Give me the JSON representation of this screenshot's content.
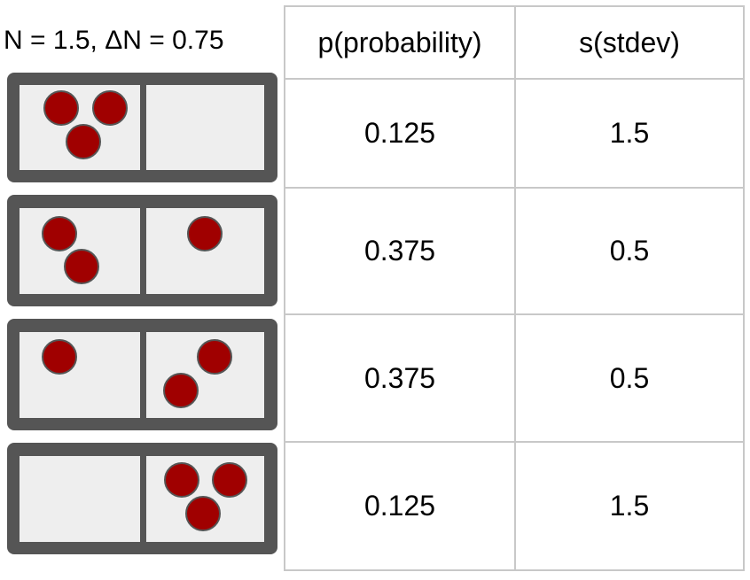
{
  "header": {
    "label": "N = 1.5, ΔN =  0.75"
  },
  "table": {
    "columns": [
      "p(probability)",
      "s(stdev)"
    ],
    "rows": [
      {
        "p": "0.125",
        "s": "1.5"
      },
      {
        "p": "0.375",
        "s": "0.5"
      },
      {
        "p": "0.375",
        "s": "0.5"
      },
      {
        "p": "0.125",
        "s": "1.5"
      }
    ]
  },
  "configurations": [
    {
      "left_balls": 3,
      "right_balls": 0
    },
    {
      "left_balls": 2,
      "right_balls": 1
    },
    {
      "left_balls": 1,
      "right_balls": 2
    },
    {
      "left_balls": 0,
      "right_balls": 3
    }
  ],
  "colors": {
    "frame": "#555555",
    "compartment": "#eeeeee",
    "ball": "#a00000",
    "ball_stroke": "#555555",
    "grid": "#c8c8c8"
  }
}
